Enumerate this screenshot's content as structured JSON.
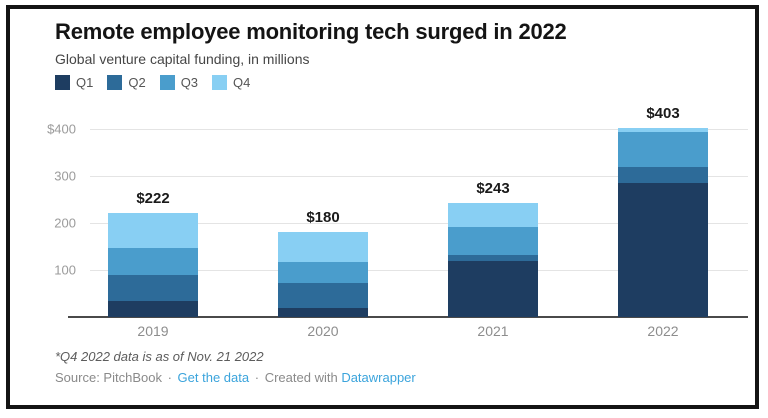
{
  "header": {
    "title": "Remote employee monitoring tech surged in 2022",
    "subtitle": "Global venture capital funding, in millions"
  },
  "chart_data": {
    "type": "bar",
    "stacked": true,
    "title": "Remote employee monitoring tech surged in 2022",
    "subtitle": "Global venture capital funding, in millions",
    "categories": [
      "2019",
      "2020",
      "2021",
      "2022"
    ],
    "series": [
      {
        "name": "Q1",
        "color": "#1e3d61",
        "values": [
          34,
          19,
          120,
          286
        ]
      },
      {
        "name": "Q2",
        "color": "#2d6b99",
        "values": [
          56,
          54,
          11,
          33
        ]
      },
      {
        "name": "Q3",
        "color": "#4a9dcc",
        "values": [
          57,
          45,
          60,
          74
        ]
      },
      {
        "name": "Q4",
        "color": "#88cff3",
        "values": [
          75,
          62,
          52,
          10
        ]
      }
    ],
    "totals": [
      222,
      180,
      243,
      403
    ],
    "total_labels": [
      "$222",
      "$180",
      "$243",
      "$403"
    ],
    "y_ticks": [
      {
        "value": 400,
        "label": "$400"
      },
      {
        "value": 300,
        "label": "300"
      },
      {
        "value": 200,
        "label": "200"
      },
      {
        "value": 100,
        "label": "100"
      }
    ],
    "ylim": [
      0,
      430
    ],
    "grid": true,
    "legend_position": "top-left",
    "units": "millions USD"
  },
  "footer": {
    "note": "*Q4 2022 data is as of Nov. 21 2022",
    "source_prefix": "Source: PitchBook",
    "separator": "·",
    "link_get_data": "Get the data",
    "created_with": "Created with",
    "link_datawrapper": "Datawrapper",
    "link_color": "#3ba4dc"
  }
}
